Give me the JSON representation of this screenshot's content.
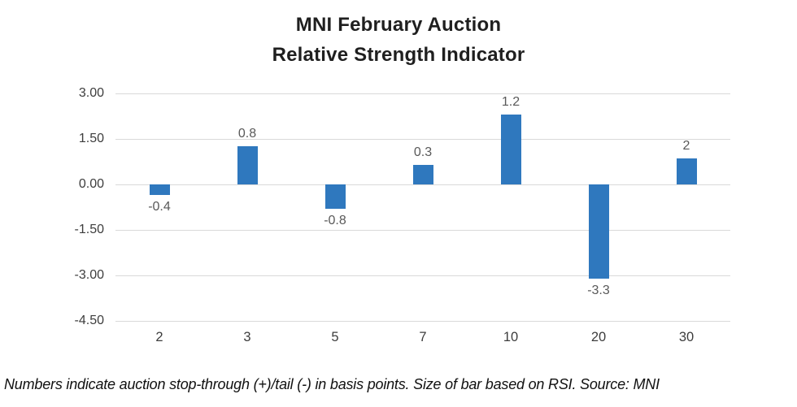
{
  "title": {
    "line1": "MNI February Auction",
    "line2": "Relative Strength Indicator"
  },
  "footnote": "Numbers indicate auction stop-through (+)/tail (-) in basis points. Size of bar based on RSI. Source: MNI",
  "chart_data": {
    "type": "bar",
    "title": "MNI February Auction Relative Strength Indicator",
    "categories": [
      "2",
      "3",
      "5",
      "7",
      "10",
      "20",
      "30"
    ],
    "series": [
      {
        "name": "Auction stop-through (+)/tail (-) in basis points (data labels)",
        "values": [
          -0.4,
          0.8,
          -0.8,
          0.3,
          1.2,
          -3.3,
          2
        ]
      },
      {
        "name": "Bar size (RSI, estimated from plot)",
        "values": [
          -0.35,
          1.25,
          -0.8,
          0.65,
          2.3,
          -3.1,
          0.85
        ]
      }
    ],
    "data_labels": [
      "-0.4",
      "0.8",
      "-0.8",
      "0.3",
      "1.2",
      "-3.3",
      "2"
    ],
    "y_ticks": [
      3.0,
      1.5,
      0.0,
      -1.5,
      -3.0,
      -4.5
    ],
    "y_tick_labels": [
      "3.00",
      "1.50",
      "0.00",
      "-1.50",
      "-3.00",
      "-4.50"
    ],
    "ylim": [
      -4.5,
      3.0
    ],
    "xlabel": "",
    "ylabel": "",
    "grid": true,
    "legend_position": "none",
    "colors": {
      "bar": "#2f78be",
      "gridline": "#d9d9d9",
      "data_label": "#595959",
      "axis_label": "#3d3d3d",
      "title": "#1f1f1f"
    }
  }
}
